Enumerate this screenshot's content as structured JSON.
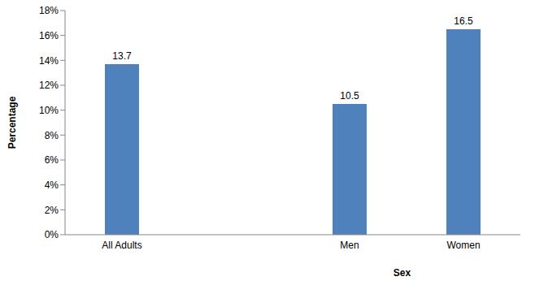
{
  "chart_data": {
    "type": "bar",
    "categories": [
      "All Adults",
      null,
      "Men",
      "Women"
    ],
    "values": [
      13.7,
      null,
      10.5,
      16.5
    ],
    "color": "#4F81BD",
    "x_label": "Sex",
    "y_label": "Percentage",
    "ylim": [
      0,
      18
    ],
    "yticks": [
      {
        "value": 0,
        "label": "0%"
      },
      {
        "value": 2,
        "label": "2%"
      },
      {
        "value": 4,
        "label": "4%"
      },
      {
        "value": 6,
        "label": "6%"
      },
      {
        "value": 8,
        "label": "8%"
      },
      {
        "value": 10,
        "label": "10%"
      },
      {
        "value": 12,
        "label": "12%"
      },
      {
        "value": 14,
        "label": "14%"
      },
      {
        "value": 16,
        "label": "16%"
      },
      {
        "value": 18,
        "label": "18%"
      }
    ],
    "grid": false,
    "data_labels": true
  }
}
